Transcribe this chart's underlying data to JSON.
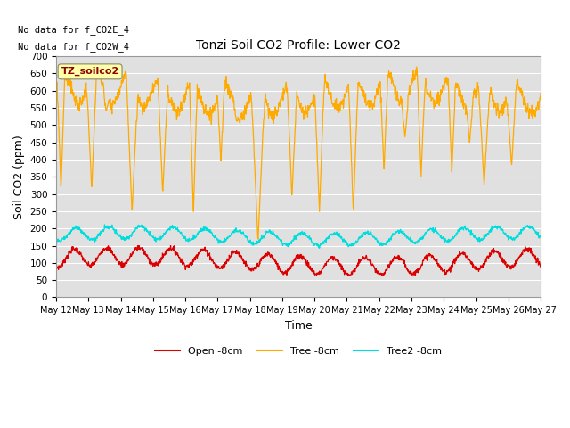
{
  "title": "Tonzi Soil CO2 Profile: Lower CO2",
  "ylabel": "Soil CO2 (ppm)",
  "xlabel": "Time",
  "note1": "No data for f_CO2E_4",
  "note2": "No data for f_CO2W_4",
  "watermark": "TZ_soilco2",
  "ylim": [
    0,
    700
  ],
  "yticks": [
    0,
    50,
    100,
    150,
    200,
    250,
    300,
    350,
    400,
    450,
    500,
    550,
    600,
    650,
    700
  ],
  "x_tick_days": [
    12,
    13,
    14,
    15,
    16,
    17,
    18,
    19,
    20,
    21,
    22,
    23,
    24,
    25,
    26,
    27
  ],
  "legend_entries": [
    "Open -8cm",
    "Tree -8cm",
    "Tree2 -8cm"
  ],
  "line_colors": [
    "#dd0000",
    "#ffaa00",
    "#00dddd"
  ],
  "bg_color": "#e0e0e0",
  "fig_bg": "#ffffff",
  "grid_color": "#ffffff",
  "orange_base": 590,
  "orange_amp": 45,
  "orange_noise": 10,
  "red_base": 105,
  "red_amp": 25,
  "cyan_base": 178,
  "cyan_amp": 18,
  "n_days": 15,
  "pts_per_day": 96,
  "seed": 7
}
